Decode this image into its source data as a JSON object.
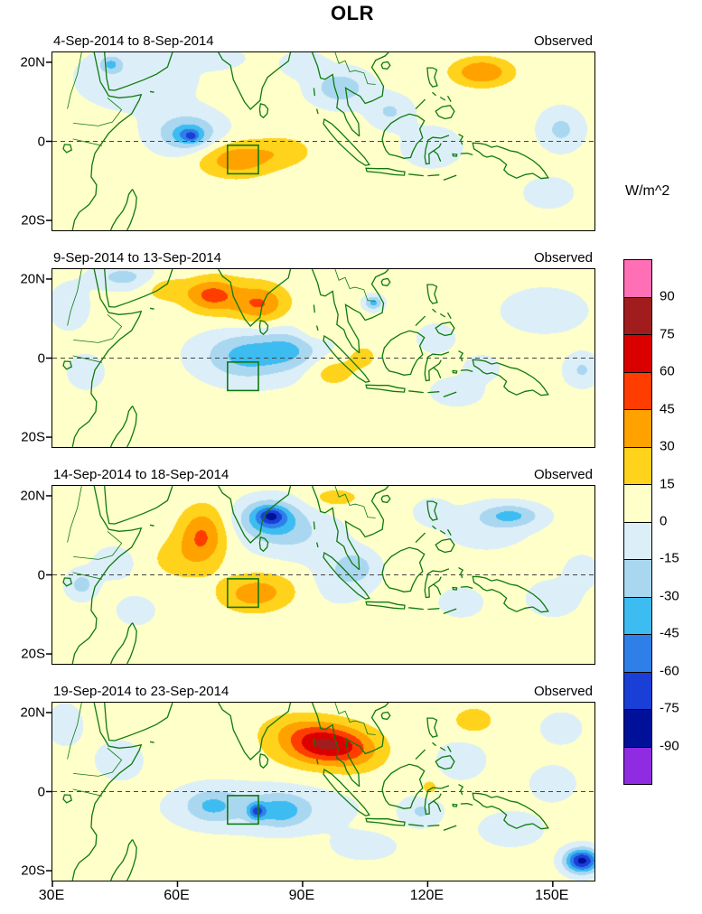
{
  "title": "OLR",
  "colorbar": {
    "label": "W/m^2",
    "ticks": [
      "90",
      "75",
      "60",
      "45",
      "30",
      "15",
      "0",
      "-15",
      "-30",
      "-45",
      "-60",
      "-75",
      "-90"
    ],
    "colors": [
      "#FF6FB5",
      "#A11D1D",
      "#DB0000",
      "#FF3D00",
      "#FFA200",
      "#FFD21C",
      "#FFFFC9",
      "#DCEFF8",
      "#AAD7F0",
      "#3DBCF2",
      "#2F7FE8",
      "#1A3FD6",
      "#001099",
      "#8F2BE0"
    ]
  },
  "xticks": [
    "30E",
    "60E",
    "90E",
    "120E",
    "150E"
  ],
  "yticks": [
    "20N",
    "0",
    "20S"
  ],
  "panels": [
    {
      "label": "4-Sep-2014 to 8-Sep-2014",
      "annotation": "Observed"
    },
    {
      "label": "9-Sep-2014 to 13-Sep-2014",
      "annotation": "Observed"
    },
    {
      "label": "14-Sep-2014 to 18-Sep-2014",
      "annotation": "Observed"
    },
    {
      "label": "19-Sep-2014 to 23-Sep-2014",
      "annotation": "Observed"
    }
  ],
  "chart_data": {
    "type": "heatmap",
    "subtype": "filled-contour OLR anomaly maps (longitude-latitude)",
    "units": "W/m^2",
    "lon_range": [
      30,
      160
    ],
    "lat_range": [
      -22.5,
      22.5
    ],
    "contour_interval": 15,
    "levels": [
      90,
      75,
      60,
      45,
      30,
      15,
      0,
      -15,
      -30,
      -45,
      -60,
      -75,
      -90
    ],
    "equator_dashed": true,
    "index_box": {
      "lon_min": 72,
      "lon_max": 79.4,
      "lat_min": -8.2,
      "lat_max": -1
    },
    "feature_format": "[lon_deg_east, lat_deg_north, peak_anomaly_wm2, sigma_lon_deg, sigma_lat_deg]",
    "panels": [
      {
        "period": "4-Sep-2014 to 8-Sep-2014",
        "source": "Observed",
        "base": 5,
        "features": [
          [
            50,
            16,
            -16,
            14,
            8
          ],
          [
            44,
            19.5,
            -30,
            2.5,
            2
          ],
          [
            62.5,
            2,
            -38,
            8,
            5
          ],
          [
            63,
            1.5,
            -28,
            3,
            2
          ],
          [
            63.5,
            1.2,
            -15,
            1.2,
            1
          ],
          [
            70,
            21,
            -14,
            6,
            2.5
          ],
          [
            74,
            -4.5,
            36,
            9,
            4.5
          ],
          [
            86,
            -2.5,
            16,
            7,
            4
          ],
          [
            99,
            13.5,
            -30,
            7,
            4.5
          ],
          [
            111,
            7.5,
            -22,
            5,
            4
          ],
          [
            90,
            19.5,
            -18,
            5,
            3
          ],
          [
            133,
            17.5,
            40,
            7,
            3.5
          ],
          [
            121,
            -1.5,
            -16,
            7,
            5
          ],
          [
            152,
            3,
            -24,
            5,
            5
          ],
          [
            149,
            -13,
            -14,
            6,
            4
          ]
        ]
      },
      {
        "period": "9-Sep-2014 to 13-Sep-2014",
        "source": "Observed",
        "base": 5,
        "features": [
          [
            68,
            16,
            36,
            6,
            4
          ],
          [
            80,
            13.5,
            32,
            6,
            4.5
          ],
          [
            74,
            15,
            14,
            12,
            6
          ],
          [
            57,
            17.5,
            18,
            5,
            3
          ],
          [
            47,
            20.5,
            -26,
            7,
            3
          ],
          [
            34,
            13,
            -14,
            5,
            6
          ],
          [
            76,
            0.5,
            -30,
            9,
            5.5
          ],
          [
            87,
            2,
            -26,
            7,
            4.5
          ],
          [
            81,
            1,
            -12,
            18,
            8
          ],
          [
            38,
            -3.5,
            -18,
            4,
            4
          ],
          [
            97,
            -3.5,
            20,
            6,
            4
          ],
          [
            104.5,
            0.5,
            16,
            4,
            3.5
          ],
          [
            92.5,
            7,
            12,
            4,
            3.5
          ],
          [
            107,
            14,
            -40,
            2.2,
            1.8
          ],
          [
            148,
            12,
            -20,
            9,
            5
          ],
          [
            157,
            -3,
            -22,
            4,
            4
          ],
          [
            127,
            -8.5,
            -16,
            6,
            3.5
          ],
          [
            122,
            5,
            -12,
            5,
            4
          ],
          [
            133,
            -2.5,
            -16,
            4,
            3
          ]
        ]
      },
      {
        "period": "14-Sep-2014 to 18-Sep-2014",
        "source": "Observed",
        "base": 5,
        "features": [
          [
            82,
            14.5,
            -48,
            7,
            4.5
          ],
          [
            82.5,
            15,
            -32,
            3,
            2
          ],
          [
            88,
            10,
            -20,
            11,
            6
          ],
          [
            66,
            10,
            40,
            5.5,
            7
          ],
          [
            60,
            4,
            14,
            8,
            6
          ],
          [
            78,
            -5,
            28,
            8,
            4.5
          ],
          [
            84,
            -3,
            10,
            10,
            5
          ],
          [
            37,
            -2.5,
            -26,
            3.5,
            3.5
          ],
          [
            45,
            3,
            -16,
            5,
            4
          ],
          [
            50,
            -9,
            -12,
            5,
            4
          ],
          [
            102.5,
            2,
            -26,
            5,
            4
          ],
          [
            98,
            -2,
            -12,
            9,
            6
          ],
          [
            98,
            19.5,
            18,
            6,
            2.5
          ],
          [
            140,
            15,
            -34,
            7,
            2.8
          ],
          [
            134,
            12,
            -12,
            11,
            6
          ],
          [
            128,
            -7,
            -16,
            5,
            3.5
          ],
          [
            150,
            -6,
            -12,
            7,
            5
          ],
          [
            121,
            16,
            -16,
            4,
            3
          ],
          [
            157,
            1,
            -14,
            4,
            4
          ]
        ]
      },
      {
        "period": "19-Sep-2014 to 23-Sep-2014",
        "source": "Observed",
        "base": 5,
        "features": [
          [
            95,
            12,
            50,
            8,
            4.5
          ],
          [
            103,
            10,
            22,
            7,
            5
          ],
          [
            93,
            12,
            18,
            14,
            7
          ],
          [
            88,
            16,
            12,
            8,
            4
          ],
          [
            68,
            -3.5,
            -26,
            6,
            4
          ],
          [
            85,
            -5,
            -28,
            6,
            4
          ],
          [
            79,
            -5,
            -45,
            2,
            2
          ],
          [
            80,
            -4,
            -20,
            20,
            6
          ],
          [
            33,
            17,
            -16,
            4,
            5
          ],
          [
            46,
            8,
            -10,
            7,
            6
          ],
          [
            118.5,
            -5,
            -22,
            4.5,
            3.5
          ],
          [
            128,
            8,
            -14,
            6,
            5
          ],
          [
            140,
            -9.5,
            -18,
            7,
            4
          ],
          [
            157,
            -17.5,
            -85,
            4,
            3
          ],
          [
            150,
            2,
            -12,
            6,
            5
          ],
          [
            131,
            18,
            20,
            5,
            3.5
          ],
          [
            120.5,
            1,
            16,
            2.5,
            2.5
          ],
          [
            105,
            -14,
            -10,
            9,
            4
          ],
          [
            152,
            16,
            -14,
            5,
            4
          ]
        ]
      }
    ]
  }
}
